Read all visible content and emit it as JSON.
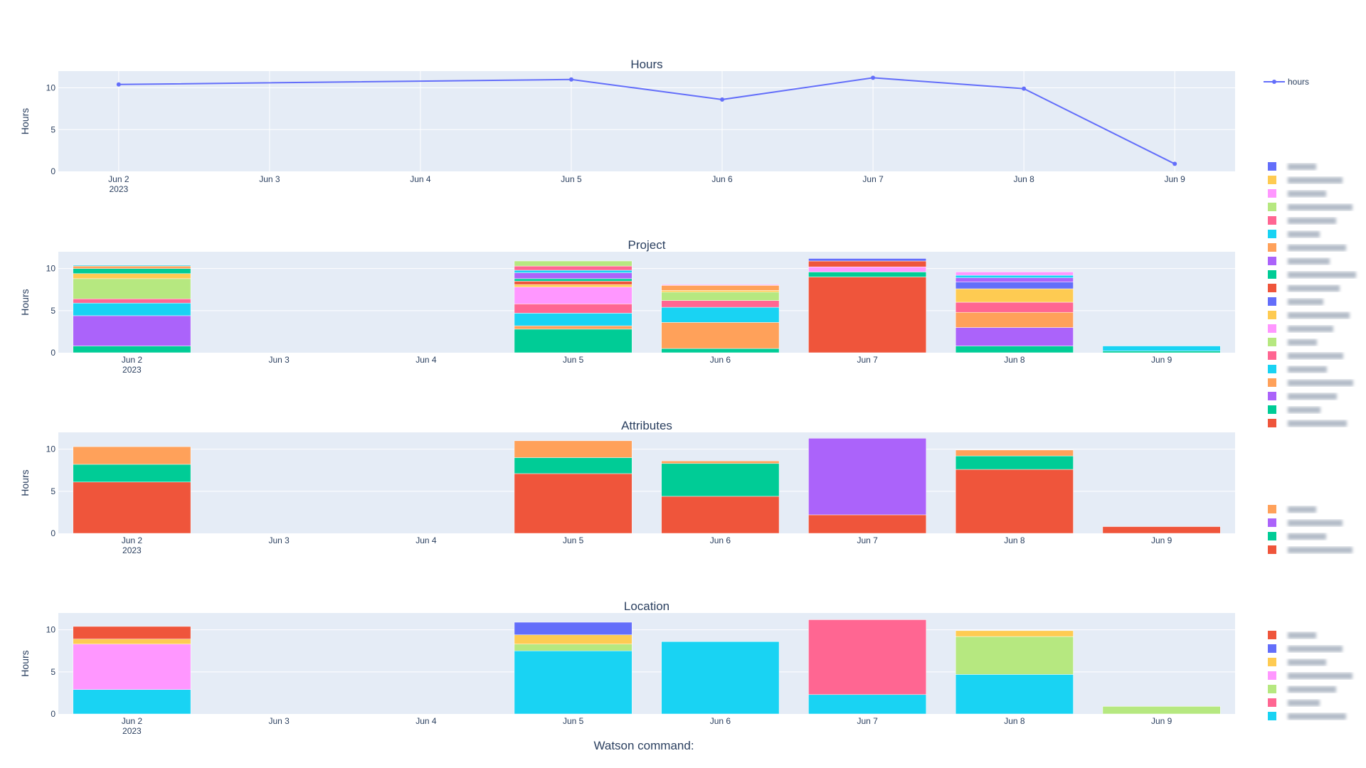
{
  "footer_label": "Watson command:",
  "palette": [
    "#636efa",
    "#ef553b",
    "#00cc96",
    "#ab63fa",
    "#ffa15a",
    "#19d3f3",
    "#ff6692",
    "#b6e880",
    "#ff97ff",
    "#fecb52"
  ],
  "chart_data": [
    {
      "type": "line",
      "title": "Hours",
      "ylabel": "Hours",
      "ylim": [
        0,
        12
      ],
      "yticks": [
        0,
        5,
        10
      ],
      "x": [
        "2023-06-02",
        "2023-06-05",
        "2023-06-06",
        "2023-06-07",
        "2023-06-08",
        "2023-06-09"
      ],
      "xticks": [
        "Jun 2",
        "Jun 3",
        "Jun 4",
        "Jun 5",
        "Jun 6",
        "Jun 7",
        "Jun 8",
        "Jun 9"
      ],
      "xtick_year": "2023",
      "grid": true,
      "legend_placement": "top-right",
      "series": [
        {
          "name": "hours",
          "color": "#636efa",
          "values": [
            10.4,
            11.0,
            8.6,
            11.2,
            9.9,
            0.9
          ]
        }
      ]
    },
    {
      "type": "bar",
      "stacked": true,
      "title": "Project",
      "ylabel": "Hours",
      "ylim": [
        0,
        12
      ],
      "yticks": [
        0,
        5,
        10
      ],
      "categories": [
        "Jun 2",
        "Jun 3",
        "Jun 4",
        "Jun 5",
        "Jun 6",
        "Jun 7",
        "Jun 8",
        "Jun 9"
      ],
      "xtick_year": "2023",
      "legend_placement": "right",
      "series": [
        {
          "name": "",
          "color": "#ef553b",
          "values": [
            0,
            0,
            0,
            0,
            0,
            9.0,
            0,
            0
          ]
        },
        {
          "name": "",
          "color": "#00cc96",
          "values": [
            0.8,
            0,
            0,
            2.8,
            0.5,
            0.6,
            0.8,
            0.2
          ]
        },
        {
          "name": "",
          "color": "#ab63fa",
          "values": [
            3.6,
            0,
            0,
            0,
            0,
            0,
            2.2,
            0
          ]
        },
        {
          "name": "",
          "color": "#ffa15a",
          "values": [
            0,
            0,
            0,
            0.4,
            3.1,
            0,
            1.8,
            0
          ]
        },
        {
          "name": "",
          "color": "#19d3f3",
          "values": [
            1.5,
            0,
            0,
            1.5,
            1.8,
            0,
            0,
            0.6
          ]
        },
        {
          "name": "",
          "color": "#ff6692",
          "values": [
            0.5,
            0,
            0,
            1.1,
            0.8,
            0,
            1.2,
            0
          ]
        },
        {
          "name": "",
          "color": "#b6e880",
          "values": [
            2.4,
            0,
            0,
            0,
            1.0,
            0,
            0,
            0
          ]
        },
        {
          "name": "",
          "color": "#ff97ff",
          "values": [
            0,
            0,
            0,
            2.0,
            0,
            0.6,
            0,
            0
          ]
        },
        {
          "name": "",
          "color": "#fecb52",
          "values": [
            0.6,
            0,
            0,
            0.3,
            0.2,
            0,
            1.6,
            0
          ]
        },
        {
          "name": "",
          "color": "#636efa",
          "values": [
            0,
            0,
            0,
            0,
            0,
            0,
            0.8,
            0
          ]
        },
        {
          "name": "",
          "color": "#ef553b",
          "values": [
            0,
            0,
            0,
            0.4,
            0,
            0.7,
            0,
            0
          ]
        },
        {
          "name": "",
          "color": "#00cc96",
          "values": [
            0.6,
            0,
            0,
            0.3,
            0,
            0,
            0,
            0
          ]
        },
        {
          "name": "",
          "color": "#ab63fa",
          "values": [
            0,
            0,
            0,
            0.7,
            0,
            0,
            0.5,
            0
          ]
        },
        {
          "name": "",
          "color": "#ffa15a",
          "values": [
            0.3,
            0,
            0,
            0,
            0.6,
            0,
            0,
            0
          ]
        },
        {
          "name": "",
          "color": "#19d3f3",
          "values": [
            0.1,
            0,
            0,
            0.3,
            0,
            0,
            0.3,
            0
          ]
        },
        {
          "name": "",
          "color": "#ff6692",
          "values": [
            0,
            0,
            0,
            0.5,
            0,
            0,
            0,
            0
          ]
        },
        {
          "name": "",
          "color": "#b6e880",
          "values": [
            0,
            0,
            0,
            0.6,
            0,
            0,
            0,
            0
          ]
        },
        {
          "name": "",
          "color": "#ff97ff",
          "values": [
            0,
            0,
            0,
            0,
            0.1,
            0,
            0.4,
            0
          ]
        },
        {
          "name": "",
          "color": "#fecb52",
          "values": [
            0,
            0,
            0,
            0,
            0,
            0,
            0,
            0
          ]
        },
        {
          "name": "",
          "color": "#636efa",
          "values": [
            0,
            0,
            0,
            0,
            0,
            0.3,
            0,
            0
          ]
        }
      ]
    },
    {
      "type": "bar",
      "stacked": true,
      "title": "Attributes",
      "ylabel": "Hours",
      "ylim": [
        0,
        12
      ],
      "yticks": [
        0,
        5,
        10
      ],
      "categories": [
        "Jun 2",
        "Jun 3",
        "Jun 4",
        "Jun 5",
        "Jun 6",
        "Jun 7",
        "Jun 8",
        "Jun 9"
      ],
      "xtick_year": "2023",
      "legend_placement": "right",
      "series": [
        {
          "name": "",
          "color": "#ef553b",
          "values": [
            6.1,
            0,
            0,
            7.1,
            4.4,
            2.2,
            7.6,
            0.8
          ]
        },
        {
          "name": "",
          "color": "#00cc96",
          "values": [
            2.1,
            0,
            0,
            1.9,
            3.9,
            0,
            1.6,
            0
          ]
        },
        {
          "name": "",
          "color": "#ab63fa",
          "values": [
            0,
            0,
            0,
            0,
            0,
            9.1,
            0,
            0
          ]
        },
        {
          "name": "",
          "color": "#ffa15a",
          "values": [
            2.1,
            0,
            0,
            2.0,
            0.3,
            0,
            0.7,
            0
          ]
        }
      ]
    },
    {
      "type": "bar",
      "stacked": true,
      "title": "Location",
      "ylabel": "Hours",
      "ylim": [
        0,
        12
      ],
      "yticks": [
        0,
        5,
        10
      ],
      "categories": [
        "Jun 2",
        "Jun 3",
        "Jun 4",
        "Jun 5",
        "Jun 6",
        "Jun 7",
        "Jun 8",
        "Jun 9"
      ],
      "xtick_year": "2023",
      "legend_placement": "right",
      "series": [
        {
          "name": "",
          "color": "#19d3f3",
          "values": [
            2.9,
            0,
            0,
            7.5,
            8.6,
            2.3,
            4.7,
            0
          ]
        },
        {
          "name": "",
          "color": "#ff6692",
          "values": [
            0,
            0,
            0,
            0,
            0,
            8.9,
            0,
            0
          ]
        },
        {
          "name": "",
          "color": "#b6e880",
          "values": [
            0,
            0,
            0,
            0.8,
            0,
            0,
            4.5,
            0.9
          ]
        },
        {
          "name": "",
          "color": "#ff97ff",
          "values": [
            5.4,
            0,
            0,
            0,
            0,
            0,
            0,
            0
          ]
        },
        {
          "name": "",
          "color": "#fecb52",
          "values": [
            0.6,
            0,
            0,
            1.1,
            0,
            0,
            0.7,
            0
          ]
        },
        {
          "name": "",
          "color": "#636efa",
          "values": [
            0,
            0,
            0,
            1.5,
            0,
            0,
            0,
            0
          ]
        },
        {
          "name": "",
          "color": "#ef553b",
          "values": [
            1.5,
            0,
            0,
            0,
            0,
            0,
            0,
            0
          ]
        }
      ]
    }
  ]
}
